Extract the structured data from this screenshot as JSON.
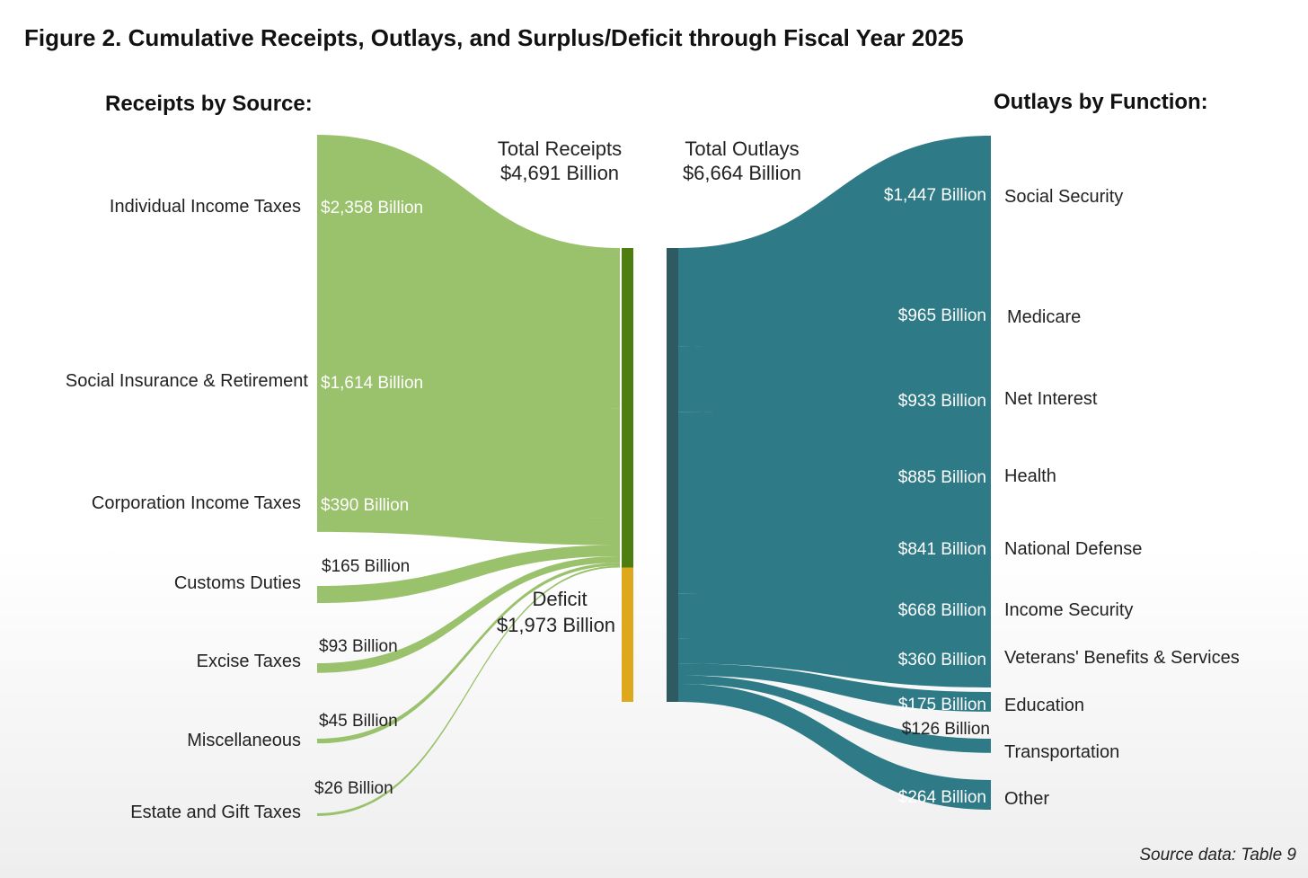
{
  "chart_data": {
    "type": "sankey",
    "title": "Figure 2. Cumulative Receipts, Outlays, and Surplus/Deficit through Fiscal Year 2025",
    "units": "Billion",
    "receipts_heading": "Receipts by Source:",
    "outlays_heading": "Outlays by Function:",
    "total_receipts": {
      "label": "Total Receipts",
      "value_label": "$4,691 Billion",
      "value": 4691
    },
    "total_outlays": {
      "label": "Total Outlays",
      "value_label": "$6,664 Billion",
      "value": 6664
    },
    "deficit": {
      "label": "Deficit",
      "value_label": "$1,973 Billion",
      "value": 1973
    },
    "receipts": [
      {
        "name": "Individual Income Taxes",
        "value": 2358,
        "value_label": "$2,358 Billion"
      },
      {
        "name": "Social Insurance & Retirement",
        "value": 1614,
        "value_label": "$1,614 Billion"
      },
      {
        "name": "Corporation Income Taxes",
        "value": 390,
        "value_label": "$390 Billion"
      },
      {
        "name": "Customs Duties",
        "value": 165,
        "value_label": "$165 Billion"
      },
      {
        "name": "Excise Taxes",
        "value": 93,
        "value_label": "$93 Billion"
      },
      {
        "name": "Miscellaneous",
        "value": 45,
        "value_label": "$45 Billion"
      },
      {
        "name": "Estate and Gift Taxes",
        "value": 26,
        "value_label": "$26 Billion"
      }
    ],
    "outlays": [
      {
        "name": "Social Security",
        "value": 1447,
        "value_label": "$1,447 Billion"
      },
      {
        "name": "Medicare",
        "value": 965,
        "value_label": "$965 Billion"
      },
      {
        "name": "Net Interest",
        "value": 933,
        "value_label": "$933 Billion"
      },
      {
        "name": "Health",
        "value": 885,
        "value_label": "$885 Billion"
      },
      {
        "name": "National Defense",
        "value": 841,
        "value_label": "$841 Billion"
      },
      {
        "name": "Income Security",
        "value": 668,
        "value_label": "$668 Billion"
      },
      {
        "name": "Veterans' Benefits & Services",
        "value": 360,
        "value_label": "$360 Billion"
      },
      {
        "name": "Education",
        "value": 175,
        "value_label": "$175 Billion"
      },
      {
        "name": "Transportation",
        "value": 126,
        "value_label": "$126 Billion"
      },
      {
        "name": "Other",
        "value": 264,
        "value_label": "$264 Billion"
      }
    ],
    "colors": {
      "receipts_flow": "#9ac16b",
      "receipts_bar": "#4e7d10",
      "deficit_bar": "#dda81c",
      "outlays_flow": "#2e7a87",
      "outlays_bar": "#2f5a62"
    }
  },
  "source_note": "Source data: Table 9"
}
